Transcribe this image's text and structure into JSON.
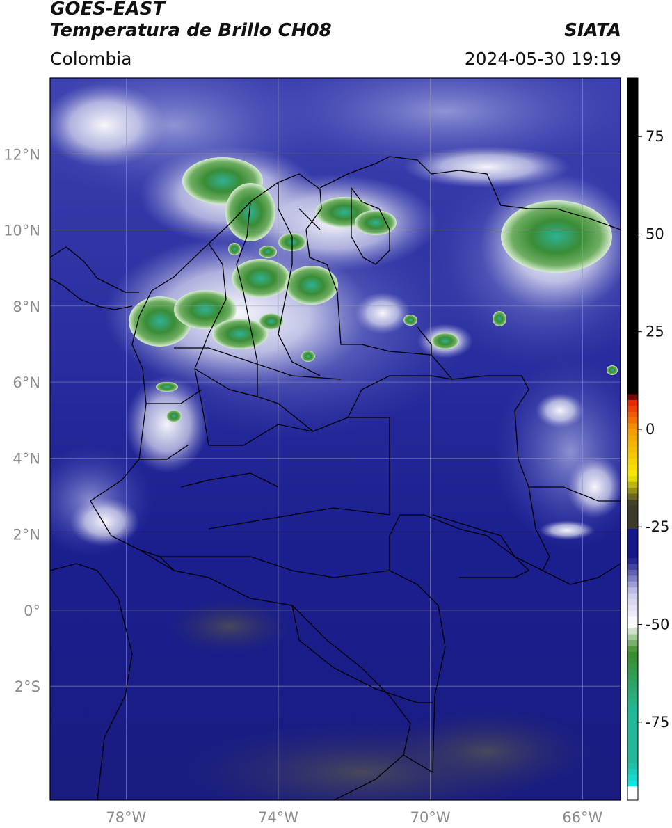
{
  "header": {
    "satellite": "GOES-EAST",
    "product": "Temperatura de Brillo CH08",
    "region": "Colombia",
    "agency": "SIATA",
    "timestamp": "2024-05-30 19:19"
  },
  "map": {
    "lon_range": [
      -80.0,
      -65.0
    ],
    "lat_range": [
      -5.0,
      14.0
    ],
    "gridlines": true,
    "lat_ticks": [
      {
        "value": 12,
        "label": "12°N"
      },
      {
        "value": 10,
        "label": "10°N"
      },
      {
        "value": 8,
        "label": "8°N"
      },
      {
        "value": 6,
        "label": "6°N"
      },
      {
        "value": 4,
        "label": "4°N"
      },
      {
        "value": 2,
        "label": "2°N"
      },
      {
        "value": 0,
        "label": "0°"
      },
      {
        "value": -2,
        "label": "2°S"
      }
    ],
    "lon_ticks": [
      {
        "value": -78,
        "label": "78°W"
      },
      {
        "value": -74,
        "label": "74°W"
      },
      {
        "value": -70,
        "label": "70°W"
      },
      {
        "value": -66,
        "label": "66°W"
      }
    ]
  },
  "colorbar": {
    "range": [
      -95,
      90
    ],
    "ticks": [
      {
        "value": 75,
        "label": "75"
      },
      {
        "value": 50,
        "label": "50"
      },
      {
        "value": 25,
        "label": "25"
      },
      {
        "value": 0,
        "label": "0"
      },
      {
        "value": -25,
        "label": "-25"
      },
      {
        "value": -50,
        "label": "-50"
      },
      {
        "value": -75,
        "label": "-75"
      }
    ],
    "colors": {
      "black": "#000000",
      "red": "#e8120a",
      "orange": "#f39a00",
      "yellow": "#f6ee00",
      "dark_olive": "#3c3b2a",
      "navy": "#16188a",
      "lavender": "#c9c9ea",
      "white": "#ffffff",
      "green": "#3b8a2b",
      "teal": "#22b897",
      "cyan": "#12e6e6"
    }
  }
}
